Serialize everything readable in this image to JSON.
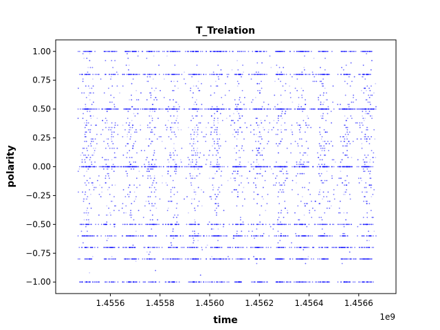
{
  "chart_data": {
    "type": "scatter",
    "title": "T_Trelation",
    "xlabel": "time",
    "ylabel": "polarity",
    "x_offset_label": "1e9",
    "xlim": [
      1.45538,
      1.45675
    ],
    "ylim": [
      -1.1,
      1.1
    ],
    "x_ticks": [
      1.4556,
      1.4558,
      1.456,
      1.4562,
      1.4564,
      1.4566
    ],
    "x_tick_labels": [
      "1.4556",
      "1.4558",
      "1.4560",
      "1.4562",
      "1.4564",
      "1.4566"
    ],
    "y_ticks": [
      1.0,
      0.75,
      0.5,
      0.25,
      0.0,
      -0.25,
      -0.5,
      -0.75,
      -1.0
    ],
    "y_tick_labels": [
      "1.00",
      "0.75",
      "0.50",
      "0.25",
      "0.00",
      "−0.25",
      "−0.50",
      "−0.75",
      "−1.00"
    ],
    "x_data_range": [
      1.45547,
      1.45667
    ],
    "point_color": "#0000ff",
    "daily_period_x": 8.64e-05,
    "dense_polarity_levels": [
      1.0,
      0.8,
      0.5,
      0.0,
      -0.5,
      -0.6,
      -0.7,
      -0.8,
      -1.0
    ],
    "grid": false,
    "legend": "none"
  }
}
